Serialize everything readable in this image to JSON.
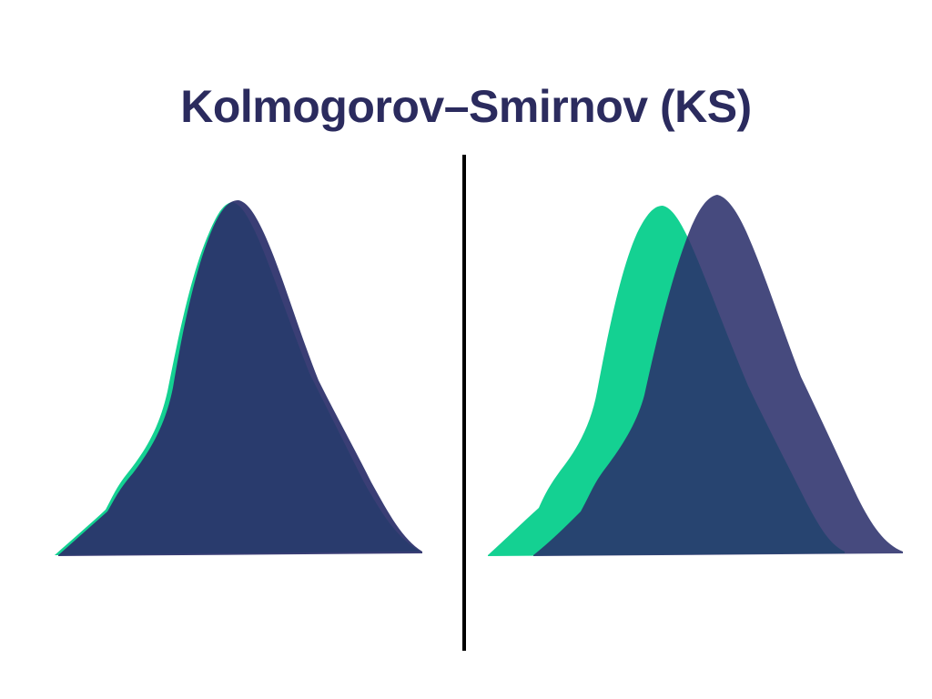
{
  "title": "Kolmogorov–Smirnov (KS)",
  "colors": {
    "reference_distribution": "#14d192",
    "compared_distribution": "#2b2f6b",
    "divider": "#000000",
    "title": "#2b2b5e"
  },
  "panels": [
    {
      "name": "matching-distributions",
      "reference_peak_offset": 0,
      "compared_peak_offset": 0.02
    },
    {
      "name": "shifted-distributions",
      "reference_peak_offset": 0,
      "compared_peak_offset": 0.14
    }
  ]
}
